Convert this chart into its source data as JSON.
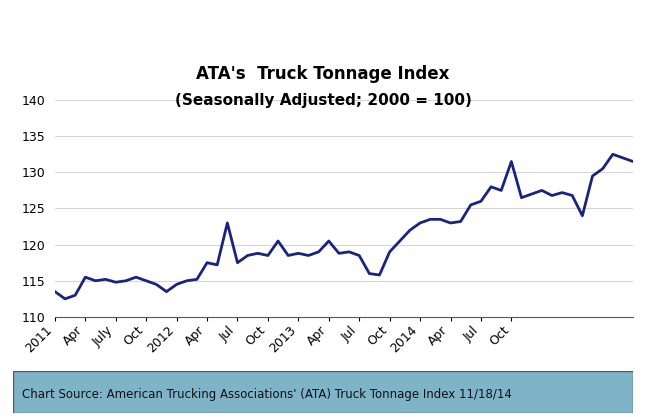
{
  "title_line1": "ATA's  Truck Tonnage Index",
  "title_line2": "(Seasonally Adjusted; 2000 = 100)",
  "line_color": "#1a237e",
  "line_width": 2.0,
  "ylim": [
    110,
    140
  ],
  "yticks": [
    110,
    115,
    120,
    125,
    130,
    135,
    140
  ],
  "footer_text": "Chart Source: American Trucking Associations' (ATA) Truck Tonnage Index 11/18/14",
  "footer_bg": "#7eb3c8",
  "background_color": "#ffffff",
  "values": [
    113.5,
    112.5,
    113.0,
    115.5,
    115.0,
    115.2,
    114.8,
    115.0,
    115.5,
    115.0,
    114.5,
    113.5,
    114.5,
    115.0,
    115.2,
    117.5,
    117.2,
    123.0,
    117.5,
    118.5,
    118.8,
    118.5,
    120.5,
    118.5,
    118.8,
    118.5,
    119.0,
    120.5,
    118.8,
    119.0,
    118.5,
    116.0,
    115.8,
    119.0,
    120.5,
    122.0,
    123.0,
    123.5,
    123.5,
    123.0,
    123.2,
    125.5,
    126.0,
    128.0,
    127.5,
    131.5,
    126.5,
    127.0,
    127.5,
    126.8,
    127.2,
    126.8,
    124.0,
    129.5,
    130.5,
    132.5,
    132.0,
    131.5
  ],
  "xtick_labels": [
    "2011",
    "Apr",
    "July",
    "Oct",
    "2012",
    "Apr",
    "Jul",
    "Oct",
    "2013",
    "Apr",
    "Jul",
    "Oct",
    "2014",
    "Apr",
    "Jul",
    "Oct"
  ],
  "xtick_positions": [
    0,
    3,
    6,
    9,
    12,
    15,
    18,
    21,
    24,
    27,
    30,
    33,
    36,
    39,
    42,
    45
  ]
}
